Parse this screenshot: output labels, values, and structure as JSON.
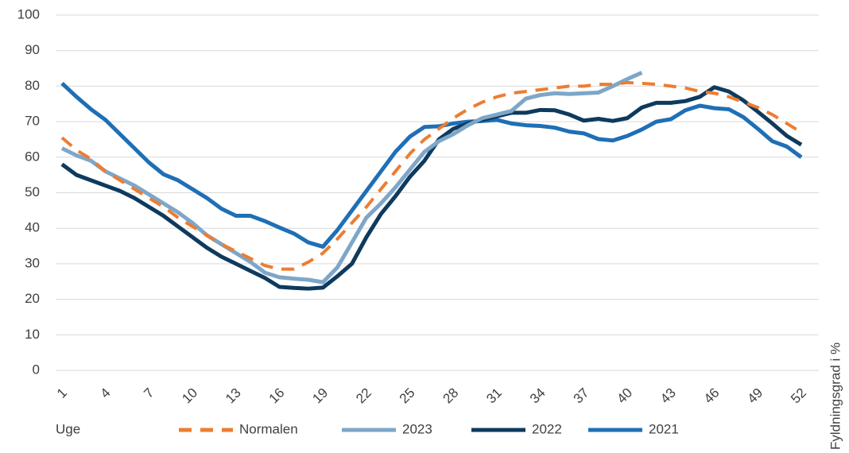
{
  "chart_data": {
    "type": "line",
    "xlabel": "Uge",
    "ylabel": "Fyldningsgrad i %",
    "categories": [
      1,
      null,
      null,
      4,
      null,
      null,
      7,
      null,
      null,
      10,
      null,
      null,
      13,
      null,
      null,
      16,
      null,
      null,
      19,
      null,
      null,
      22,
      null,
      null,
      25,
      null,
      null,
      28,
      null,
      null,
      31,
      null,
      null,
      34,
      null,
      null,
      37,
      null,
      null,
      40,
      null,
      null,
      43,
      null,
      null,
      46,
      null,
      null,
      49,
      null,
      null,
      52
    ],
    "ylim": [
      0,
      100
    ],
    "yticks": [
      0,
      10,
      20,
      30,
      40,
      50,
      60,
      70,
      80,
      90,
      100
    ],
    "grid": true,
    "legend": "bottom",
    "series": [
      {
        "name": "Normalen",
        "color": "#ed7d31",
        "style": "dashed",
        "values": [
          65.5,
          62,
          59.5,
          56,
          53.5,
          51,
          48.5,
          46,
          43,
          40.5,
          38,
          35.5,
          33.5,
          31.5,
          29.5,
          28.5,
          28.5,
          30.5,
          33,
          37,
          41.5,
          46,
          51,
          56,
          61,
          65,
          68,
          71,
          73.5,
          75.5,
          77,
          78,
          78.5,
          79,
          79.5,
          80,
          80,
          80.5,
          80.5,
          81,
          80.8,
          80.5,
          80,
          79.5,
          78.5,
          78,
          77,
          75.5,
          74,
          72,
          69.5,
          67
        ]
      },
      {
        "name": "2023",
        "color": "#7ea6c8",
        "style": "solid",
        "values": [
          62.5,
          60.5,
          59,
          56,
          54,
          52,
          49.5,
          47,
          44.5,
          41.5,
          38,
          35.5,
          33,
          30.5,
          27.5,
          26.2,
          25.8,
          25.5,
          24.8,
          29,
          36,
          43,
          47,
          51.5,
          56.5,
          61.5,
          64.5,
          66.5,
          69,
          71,
          72,
          73,
          76.5,
          77.5,
          78,
          77.8,
          78,
          78.2,
          80,
          82,
          83.8,
          null,
          null,
          null,
          null,
          null,
          null,
          null,
          null,
          null,
          null,
          null
        ]
      },
      {
        "name": "2022",
        "color": "#0e3a5d",
        "style": "solid",
        "values": [
          58,
          55,
          53.5,
          52,
          50.5,
          48.5,
          46,
          43.5,
          40.5,
          37.5,
          34.5,
          32,
          30,
          28,
          26,
          23.5,
          23.2,
          23,
          23.3,
          26.5,
          30,
          37.5,
          44,
          49,
          54.5,
          59,
          65,
          68,
          69.5,
          70.5,
          71.5,
          72.5,
          72.5,
          73.3,
          73.2,
          72,
          70.3,
          70.8,
          70.2,
          71,
          74,
          75.3,
          75.3,
          75.8,
          77,
          79.7,
          78.5,
          76,
          72.8,
          69.5,
          66,
          63.5
        ]
      },
      {
        "name": "2021",
        "color": "#1f6fb5",
        "style": "solid",
        "values": [
          80.8,
          77,
          73.5,
          70.5,
          66.5,
          62.5,
          58.5,
          55.2,
          53.5,
          51,
          48.5,
          45.5,
          43.5,
          43.5,
          42,
          40.2,
          38.5,
          36,
          34.8,
          39.5,
          45,
          50.5,
          56,
          61.5,
          65.8,
          68.5,
          68.7,
          69.5,
          70,
          70.2,
          70.5,
          69.5,
          69,
          68.8,
          68.3,
          67.2,
          66.7,
          65.1,
          64.7,
          66,
          67.8,
          70,
          70.7,
          73.2,
          74.5,
          73.8,
          73.5,
          71.3,
          68,
          64.5,
          63,
          60
        ]
      }
    ]
  }
}
